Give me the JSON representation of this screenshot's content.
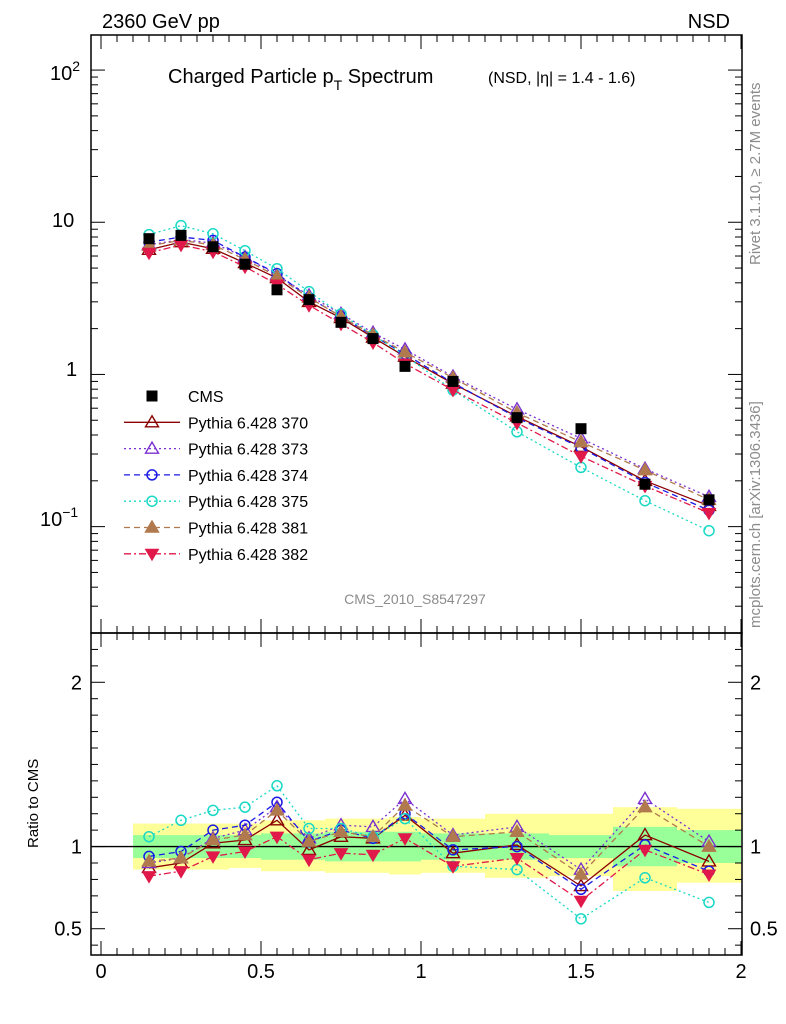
{
  "header": {
    "left": "2360 GeV pp",
    "right": "NSD"
  },
  "side": {
    "rivet": "Rivet 3.1.10, ≥ 2.7M events",
    "mcplots": "mcplots.cern.ch [arXiv:1306.3436]"
  },
  "chart_data": [
    {
      "type": "scatter",
      "title_main": "Charged Particle p",
      "title_sub": "T",
      "title_main2": " Spectrum",
      "title_extra": "(NSD, |η| = 1.4 - 1.6)",
      "analysis_label": "CMS_2010_S8547297",
      "ylog": true,
      "xlim": [
        0,
        2
      ],
      "ylim": [
        0.02,
        170
      ],
      "ytick_labels": {
        "top": "10",
        "top_exp": "2",
        "ten": "10",
        "one": "1",
        "low": "10",
        "low_exp": "−1"
      },
      "x": [
        0.15,
        0.25,
        0.35,
        0.45,
        0.55,
        0.65,
        0.75,
        0.85,
        0.95,
        1.1,
        1.3,
        1.5,
        1.7,
        1.9
      ],
      "series": [
        {
          "name": "CMS",
          "color": "#000000",
          "marker": "square",
          "line": "none",
          "values": [
            7.8,
            8.2,
            6.9,
            5.3,
            3.6,
            3.1,
            2.2,
            1.72,
            1.13,
            0.9,
            0.52,
            0.44,
            0.19,
            0.15
          ]
        },
        {
          "name": "Pythia 6.428 370",
          "color": "#8b0000",
          "marker": "triangle-open",
          "line": "solid",
          "values": [
            6.6,
            7.4,
            6.7,
            5.4,
            4.3,
            3.0,
            2.35,
            1.75,
            1.31,
            0.87,
            0.53,
            0.335,
            0.2,
            0.137
          ]
        },
        {
          "name": "Pythia 6.428 373",
          "color": "#7b2fd0",
          "marker": "triangle-open",
          "line": "dotted",
          "values": [
            7.1,
            7.7,
            7.3,
            5.9,
            4.5,
            3.3,
            2.5,
            1.88,
            1.46,
            0.97,
            0.59,
            0.38,
            0.24,
            0.157
          ]
        },
        {
          "name": "Pythia 6.428 374",
          "color": "#1a1ae6",
          "marker": "circle-open",
          "line": "dashed",
          "values": [
            7.4,
            8.0,
            7.6,
            5.9,
            4.6,
            3.2,
            2.4,
            1.8,
            1.36,
            0.88,
            0.52,
            0.33,
            0.195,
            0.128
          ]
        },
        {
          "name": "Pythia 6.428 375",
          "color": "#19d9c6",
          "marker": "circle-open",
          "line": "dotted",
          "values": [
            8.3,
            9.5,
            8.4,
            6.5,
            4.95,
            3.5,
            2.5,
            1.82,
            1.33,
            0.79,
            0.42,
            0.245,
            0.148,
            0.094
          ]
        },
        {
          "name": "Pythia 6.428 381",
          "color": "#b07a4e",
          "marker": "triangle-filled",
          "line": "dashed",
          "values": [
            7.0,
            7.6,
            7.1,
            5.7,
            4.4,
            3.2,
            2.4,
            1.82,
            1.4,
            0.95,
            0.56,
            0.36,
            0.235,
            0.15
          ]
        },
        {
          "name": "Pythia 6.428 382",
          "color": "#e0194a",
          "marker": "triangle-down-filled",
          "line": "dashdot",
          "values": [
            6.3,
            7.1,
            6.4,
            5.1,
            3.9,
            2.85,
            2.15,
            1.62,
            1.18,
            0.79,
            0.48,
            0.29,
            0.185,
            0.123
          ]
        }
      ]
    },
    {
      "type": "scatter",
      "ylabel": "Ratio to CMS",
      "xlim": [
        0,
        2
      ],
      "ylim": [
        0.34,
        2.3
      ],
      "xticks": [
        0,
        0.5,
        1,
        1.5,
        2
      ],
      "xtick_labels": [
        "0",
        "0.5",
        "1",
        "1.5",
        "2"
      ],
      "yticks": [
        0.5,
        1,
        2
      ],
      "ytick_labels": [
        "0.5",
        "1",
        "2"
      ],
      "bands": {
        "edges": [
          0.1,
          0.2,
          0.3,
          0.4,
          0.5,
          0.6,
          0.7,
          0.8,
          0.9,
          1.0,
          1.2,
          1.4,
          1.6,
          1.8,
          2.0
        ],
        "green_low": [
          0.93,
          0.93,
          0.93,
          0.93,
          0.92,
          0.92,
          0.91,
          0.91,
          0.91,
          0.92,
          0.92,
          0.93,
          0.88,
          0.9
        ],
        "green_high": [
          1.07,
          1.07,
          1.07,
          1.07,
          1.08,
          1.08,
          1.09,
          1.09,
          1.09,
          1.08,
          1.08,
          1.07,
          1.12,
          1.1
        ],
        "yellow_low": [
          0.86,
          0.86,
          0.86,
          0.87,
          0.85,
          0.85,
          0.84,
          0.84,
          0.83,
          0.84,
          0.81,
          0.82,
          0.73,
          0.78
        ],
        "yellow_high": [
          1.14,
          1.14,
          1.14,
          1.14,
          1.16,
          1.16,
          1.17,
          1.17,
          1.18,
          1.17,
          1.2,
          1.2,
          1.24,
          1.23
        ],
        "green_color": "#99ff99",
        "yellow_color": "#ffff99"
      },
      "reference_line": 1,
      "x": [
        0.15,
        0.25,
        0.35,
        0.45,
        0.55,
        0.65,
        0.75,
        0.85,
        0.95,
        1.1,
        1.3,
        1.5,
        1.7,
        1.9
      ],
      "series": [
        {
          "name": "Pythia 6.428 370",
          "values": [
            0.87,
            0.9,
            1.02,
            1.04,
            1.16,
            0.98,
            1.06,
            1.05,
            1.19,
            0.96,
            1.01,
            0.76,
            1.07,
            0.91
          ]
        },
        {
          "name": "Pythia 6.428 373",
          "values": [
            0.9,
            0.93,
            1.05,
            1.1,
            1.24,
            1.05,
            1.13,
            1.12,
            1.29,
            1.07,
            1.12,
            0.86,
            1.29,
            1.03
          ]
        },
        {
          "name": "Pythia 6.428 374",
          "values": [
            0.94,
            0.97,
            1.1,
            1.13,
            1.27,
            1.03,
            1.1,
            1.05,
            1.2,
            0.98,
            1.0,
            0.74,
            1.01,
            0.85
          ]
        },
        {
          "name": "Pythia 6.428 375",
          "values": [
            1.06,
            1.16,
            1.22,
            1.24,
            1.37,
            1.11,
            1.11,
            1.06,
            1.17,
            0.88,
            0.86,
            0.56,
            0.81,
            0.66
          ]
        },
        {
          "name": "Pythia 6.428 381",
          "values": [
            0.91,
            0.93,
            1.04,
            1.07,
            1.22,
            1.03,
            1.09,
            1.06,
            1.25,
            1.06,
            1.09,
            0.83,
            1.24,
            1.0
          ]
        },
        {
          "name": "Pythia 6.428 382",
          "values": [
            0.82,
            0.85,
            0.94,
            0.97,
            1.06,
            0.92,
            0.96,
            0.95,
            1.05,
            0.88,
            0.93,
            0.67,
            0.98,
            0.83
          ]
        }
      ]
    }
  ]
}
